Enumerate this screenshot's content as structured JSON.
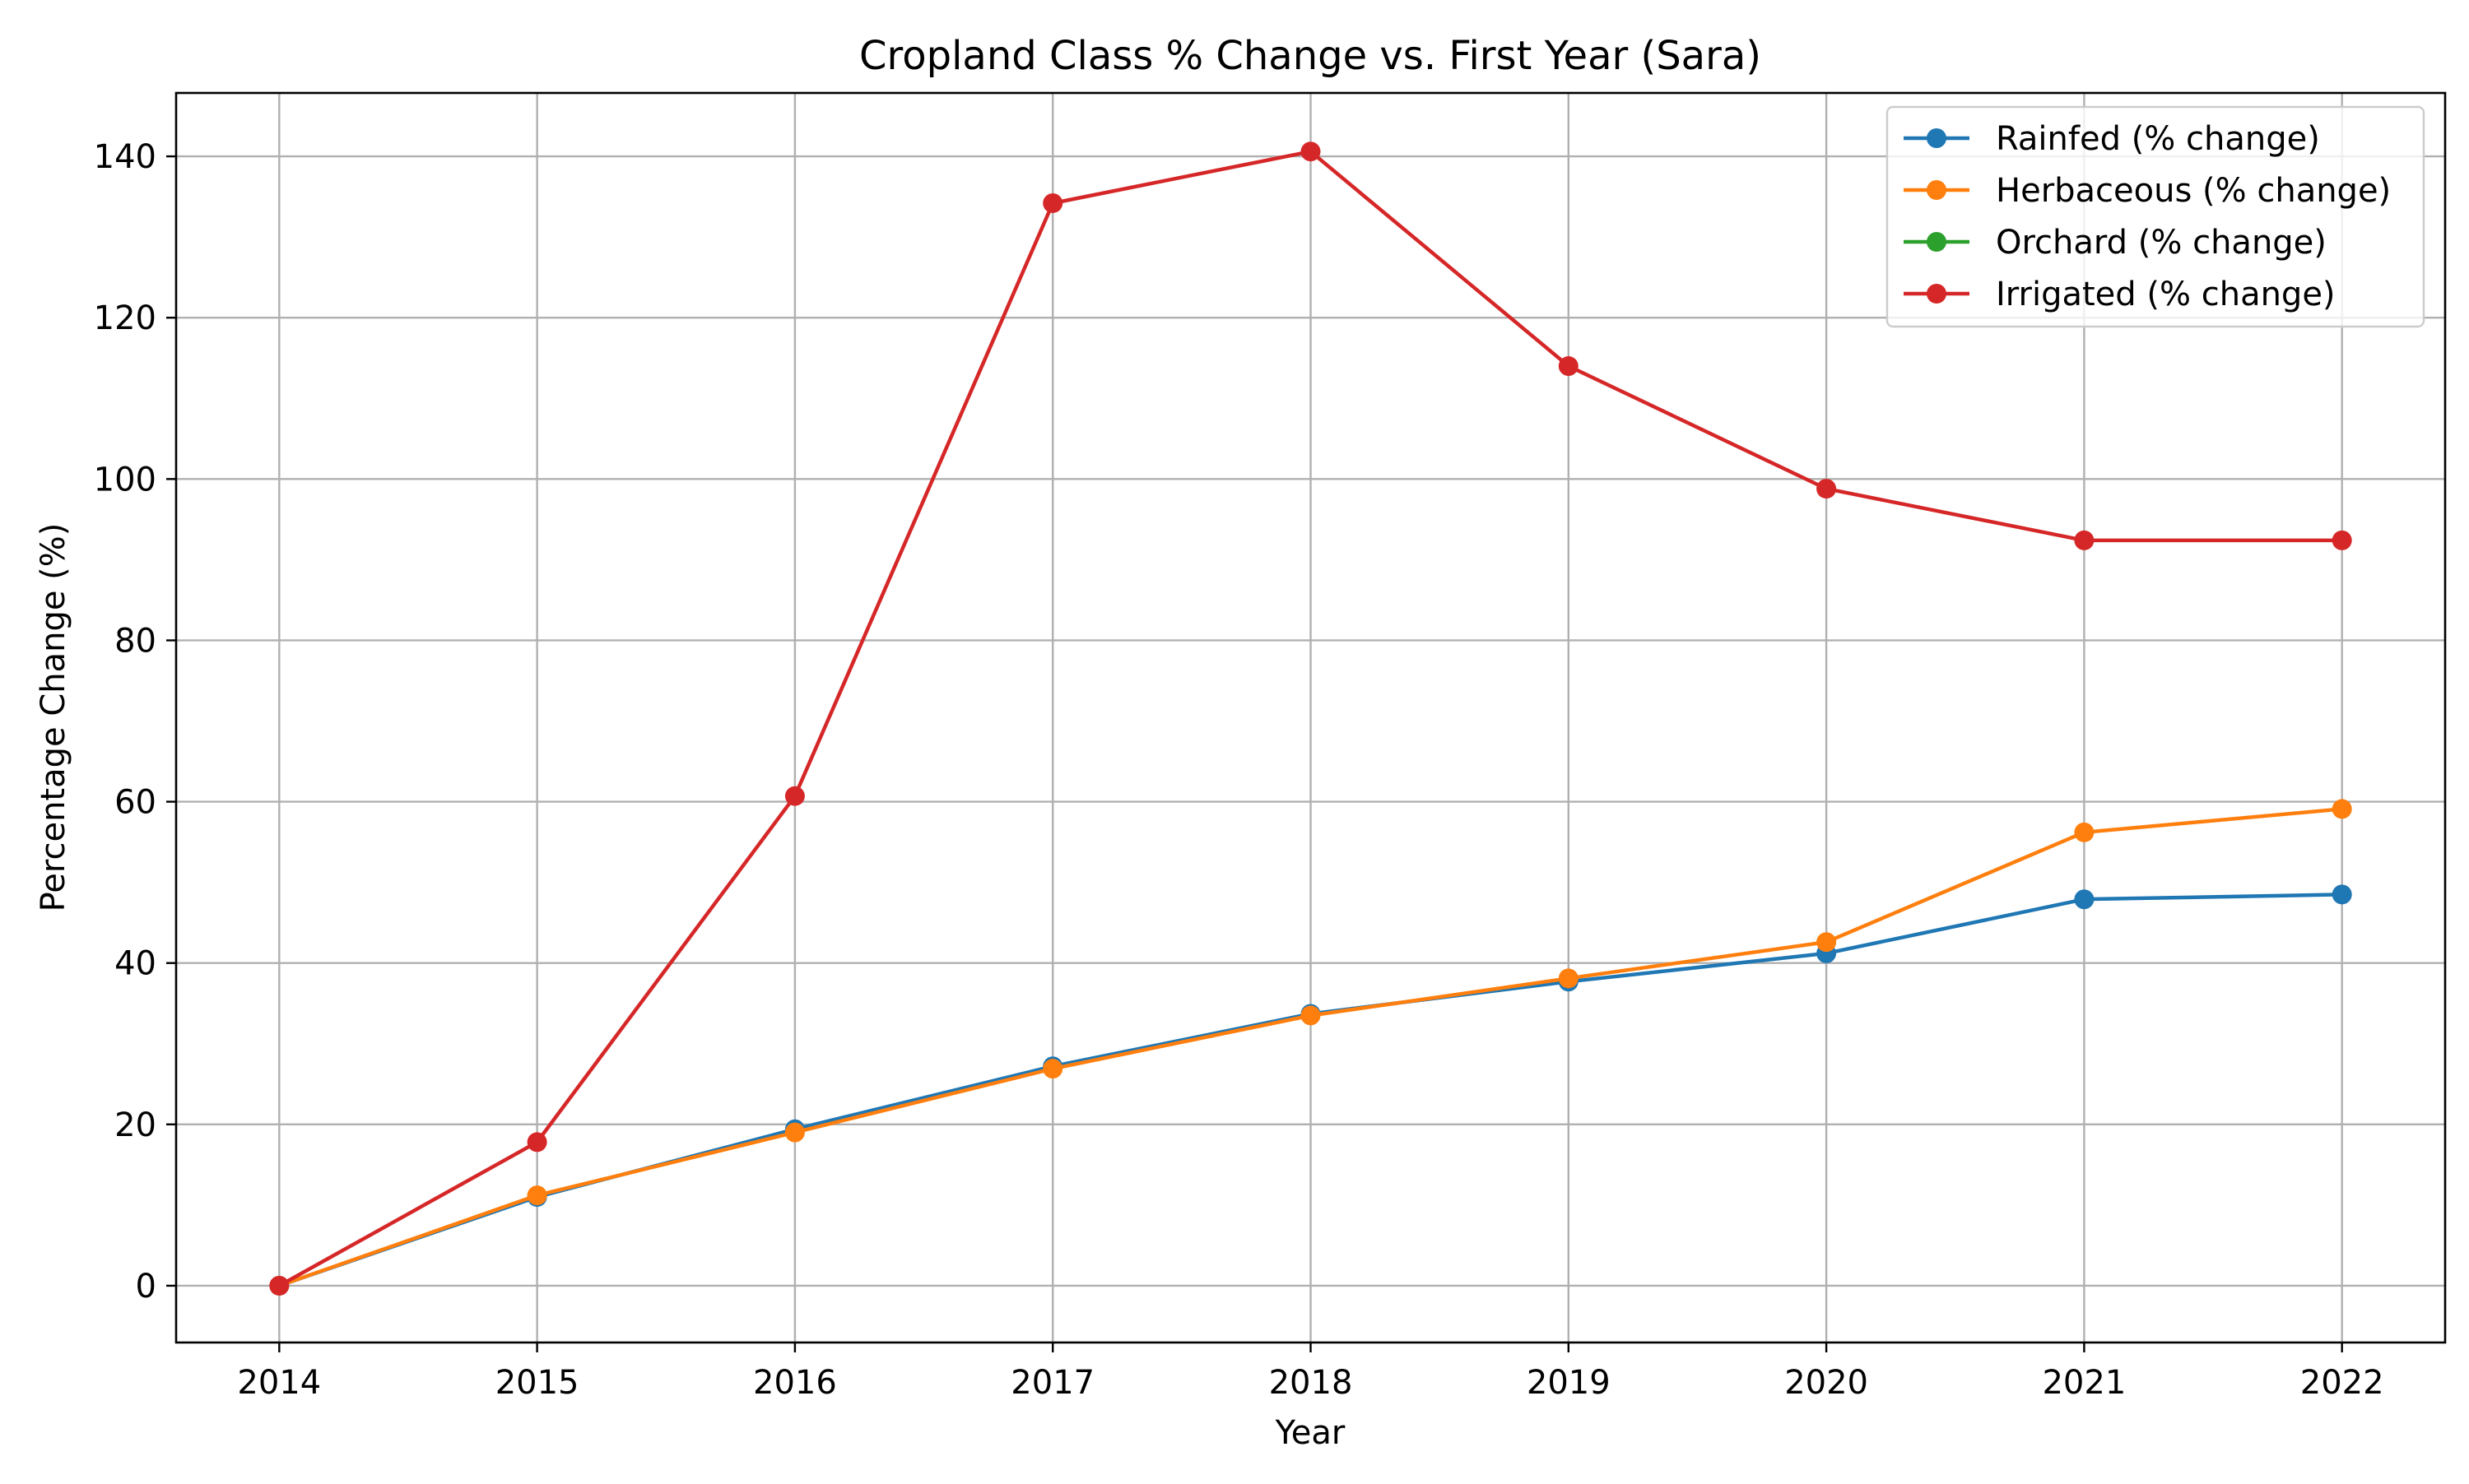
{
  "chart_data": {
    "type": "line",
    "title": "Cropland Class % Change vs. First Year (Sara)",
    "xlabel": "Year",
    "ylabel": "Percentage Change (%)",
    "x": [
      2014,
      2015,
      2016,
      2017,
      2018,
      2019,
      2020,
      2021,
      2022
    ],
    "x_ticks": [
      "2014",
      "2015",
      "2016",
      "2017",
      "2018",
      "2019",
      "2020",
      "2021",
      "2022"
    ],
    "y_ticks": [
      "0",
      "20",
      "40",
      "60",
      "80",
      "100",
      "120",
      "140"
    ],
    "xlim": [
      2013.6,
      2022.4
    ],
    "ylim": [
      -7.04,
      147.86
    ],
    "grid": true,
    "legend_position": "upper-right",
    "series": [
      {
        "name": "Rainfed (% change)",
        "color": "#1f77b4",
        "values": [
          0,
          11.0,
          19.4,
          27.2,
          33.7,
          37.7,
          41.2,
          47.9,
          48.5
        ]
      },
      {
        "name": "Herbaceous (% change)",
        "color": "#ff7f0e",
        "values": [
          0,
          11.2,
          19.0,
          26.9,
          33.5,
          38.1,
          42.6,
          56.2,
          59.1
        ]
      },
      {
        "name": "Orchard (% change)",
        "color": "#2ca02c",
        "values": [
          null,
          null,
          null,
          null,
          null,
          null,
          null,
          null,
          null
        ]
      },
      {
        "name": "Irrigated (% change)",
        "color": "#d62728",
        "values": [
          0,
          17.8,
          60.7,
          134.2,
          140.6,
          114.0,
          98.8,
          92.4,
          92.4
        ]
      }
    ]
  }
}
